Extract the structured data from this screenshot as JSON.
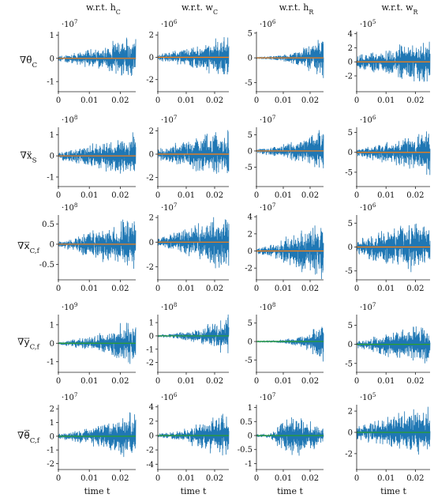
{
  "figure": {
    "x_axis_label": "time t",
    "column_headers": [
      "w.r.t. h_C",
      "w.r.t. w_C",
      "w.r.t. h_R",
      "w.r.t. w_R"
    ],
    "row_labels": [
      "∇θ̈_C",
      "∇ẍ_S",
      "∇x⃛_C,f",
      "∇y⃛_C,f",
      "∇θ⃛_C,f"
    ]
  },
  "colors": {
    "gradient_series": "#1f77b4",
    "reference_series": "#ff7f0e",
    "reference_series_alt": "#2ca02c",
    "axis": "#222222"
  },
  "chart_data": [
    {
      "type": "line",
      "row": 0,
      "col": 0,
      "exponent": "·10^7",
      "x_ticks": [
        "0",
        "0.01",
        "0.02"
      ],
      "y_ticks": [
        "-1",
        "0",
        "1"
      ],
      "xlim": [
        0,
        0.025
      ],
      "ylim": [
        -1.3,
        1.15
      ],
      "series": [
        {
          "values_envelope": {
            "t": [
              0,
              0.005,
              0.01,
              0.015,
              0.02,
              0.025
            ],
            "amp": [
              0.15,
              0.3,
              0.45,
              0.6,
              0.95,
              1.1
            ]
          }
        },
        {
          "values": {
            "t": [
              0,
              0.025
            ],
            "y": [
              0,
              0
            ]
          }
        }
      ]
    },
    {
      "type": "line",
      "row": 0,
      "col": 1,
      "exponent": "·10^6",
      "x_ticks": [
        "0",
        "0.01",
        "0.02"
      ],
      "y_ticks": [
        "-2",
        "0",
        "2"
      ],
      "xlim": [
        0,
        0.025
      ],
      "ylim": [
        -2.8,
        2.3
      ],
      "series": [
        {
          "values_envelope": {
            "t": [
              0,
              0.005,
              0.01,
              0.015,
              0.02,
              0.025
            ],
            "amp": [
              0.3,
              0.6,
              0.9,
              1.3,
              1.9,
              2.1
            ]
          }
        },
        {
          "values": {
            "t": [
              0,
              0.025
            ],
            "y": [
              0,
              0
            ]
          }
        }
      ]
    },
    {
      "type": "line",
      "row": 0,
      "col": 2,
      "exponent": "·10^6",
      "x_ticks": [
        "0",
        "0.01",
        "0.02"
      ],
      "y_ticks": [
        "-5",
        "0",
        "5"
      ],
      "xlim": [
        0,
        0.025
      ],
      "ylim": [
        -6.2,
        5.3
      ],
      "series": [
        {
          "values_envelope": {
            "t": [
              0,
              0.005,
              0.01,
              0.015,
              0.02,
              0.025
            ],
            "amp": [
              0.2,
              0.4,
              0.8,
              1.6,
              3.0,
              5.0
            ]
          }
        },
        {
          "values": {
            "t": [
              0,
              0.025
            ],
            "y": [
              0,
              0
            ]
          }
        }
      ]
    },
    {
      "type": "line",
      "row": 0,
      "col": 3,
      "exponent": "·10^5",
      "x_ticks": [
        "0",
        "0.01",
        "0.02"
      ],
      "y_ticks": [
        "-2",
        "0",
        "2",
        "4"
      ],
      "xlim": [
        0,
        0.025
      ],
      "ylim": [
        -3.8,
        4.3
      ],
      "series": [
        {
          "values_envelope": {
            "t": [
              0,
              0.005,
              0.01,
              0.015,
              0.02,
              0.025
            ],
            "amp": [
              1.0,
              1.6,
              2.2,
              2.8,
              3.3,
              3.6
            ]
          }
        },
        {
          "values": {
            "t": [
              0,
              0.025
            ],
            "y": [
              0,
              0
            ]
          }
        }
      ]
    },
    {
      "type": "line",
      "row": 1,
      "col": 0,
      "exponent": "·10^8",
      "x_ticks": [
        "0",
        "0.01",
        "0.02"
      ],
      "y_ticks": [
        "-1",
        "0",
        "1"
      ],
      "xlim": [
        0,
        0.025
      ],
      "ylim": [
        -1.3,
        1.35
      ],
      "series": [
        {
          "values_envelope": {
            "t": [
              0,
              0.005,
              0.01,
              0.015,
              0.02,
              0.025
            ],
            "amp": [
              0.2,
              0.4,
              0.6,
              0.8,
              1.0,
              1.2
            ]
          }
        },
        {
          "values": {
            "t": [
              0,
              0.025
            ],
            "y": [
              0,
              0
            ]
          }
        }
      ]
    },
    {
      "type": "line",
      "row": 1,
      "col": 1,
      "exponent": "·10^7",
      "x_ticks": [
        "0",
        "0.01",
        "0.02"
      ],
      "y_ticks": [
        "-2",
        "0",
        "2"
      ],
      "xlim": [
        0,
        0.025
      ],
      "ylim": [
        -2.5,
        2.3
      ],
      "series": [
        {
          "values_envelope": {
            "t": [
              0,
              0.005,
              0.01,
              0.015,
              0.02,
              0.025
            ],
            "amp": [
              0.5,
              1.0,
              1.4,
              1.8,
              2.0,
              2.2
            ]
          }
        },
        {
          "values": {
            "t": [
              0,
              0.025
            ],
            "y": [
              0,
              0
            ]
          }
        }
      ]
    },
    {
      "type": "line",
      "row": 1,
      "col": 2,
      "exponent": "·10^7",
      "x_ticks": [
        "0",
        "0.01",
        "0.02"
      ],
      "y_ticks": [
        "-5",
        "0",
        "5"
      ],
      "xlim": [
        0,
        0.025
      ],
      "ylim": [
        -10,
        7.3
      ],
      "series": [
        {
          "values_envelope": {
            "t": [
              0,
              0.005,
              0.01,
              0.015,
              0.02,
              0.025
            ],
            "amp": [
              0.8,
              1.5,
              2.5,
              3.5,
              5.5,
              7.5
            ]
          }
        },
        {
          "values": {
            "t": [
              0,
              0.025
            ],
            "y": [
              0,
              0
            ]
          }
        }
      ]
    },
    {
      "type": "line",
      "row": 1,
      "col": 3,
      "exponent": "·10^6",
      "x_ticks": [
        "0",
        "0.01",
        "0.02"
      ],
      "y_ticks": [
        "-5",
        "0",
        "5"
      ],
      "xlim": [
        0,
        0.025
      ],
      "ylim": [
        -7.8,
        6.3
      ],
      "series": [
        {
          "values_envelope": {
            "t": [
              0,
              0.005,
              0.01,
              0.015,
              0.02,
              0.025
            ],
            "amp": [
              1.0,
              2.0,
              3.0,
              4.0,
              5.5,
              6.5
            ]
          }
        },
        {
          "values": {
            "t": [
              0,
              0.025
            ],
            "y": [
              0,
              0
            ]
          }
        }
      ]
    },
    {
      "type": "line",
      "row": 2,
      "col": 0,
      "exponent": "·10^8",
      "x_ticks": [
        "0",
        "0.01",
        "0.02"
      ],
      "y_ticks": [
        "-0.5",
        "0",
        "0.5"
      ],
      "xlim": [
        0,
        0.025
      ],
      "ylim": [
        -0.8,
        0.72
      ],
      "series": [
        {
          "values_envelope": {
            "t": [
              0,
              0.005,
              0.01,
              0.015,
              0.02,
              0.025
            ],
            "amp": [
              0.1,
              0.2,
              0.4,
              0.5,
              0.6,
              0.7
            ]
          }
        },
        {
          "values": {
            "t": [
              0,
              0.025
            ],
            "y": [
              0,
              0
            ]
          }
        }
      ]
    },
    {
      "type": "line",
      "row": 2,
      "col": 1,
      "exponent": "·10^7",
      "x_ticks": [
        "0",
        "0.01",
        "0.02"
      ],
      "y_ticks": [
        "-2",
        "0",
        "2"
      ],
      "xlim": [
        0,
        0.025
      ],
      "ylim": [
        -2.8,
        2.2
      ],
      "series": [
        {
          "values_envelope": {
            "t": [
              0,
              0.005,
              0.01,
              0.015,
              0.02,
              0.025
            ],
            "amp": [
              0.4,
              0.8,
              1.2,
              1.7,
              2.2,
              2.5
            ]
          }
        },
        {
          "values": {
            "t": [
              0,
              0.025
            ],
            "y": [
              0,
              0
            ]
          }
        }
      ]
    },
    {
      "type": "line",
      "row": 2,
      "col": 2,
      "exponent": "·10^7",
      "x_ticks": [
        "0",
        "0.01",
        "0.02"
      ],
      "y_ticks": [
        "-2",
        "0",
        "2",
        "4"
      ],
      "xlim": [
        0,
        0.025
      ],
      "ylim": [
        -3.0,
        4.2
      ],
      "series": [
        {
          "values_envelope": {
            "t": [
              0,
              0.005,
              0.01,
              0.015,
              0.02,
              0.025
            ],
            "amp": [
              0.3,
              0.8,
              1.5,
              2.5,
              3.2,
              3.8
            ]
          }
        },
        {
          "values": {
            "t": [
              0,
              0.025
            ],
            "y": [
              0,
              0
            ]
          }
        }
      ]
    },
    {
      "type": "line",
      "row": 2,
      "col": 3,
      "exponent": "·10^6",
      "x_ticks": [
        "0",
        "0.01",
        "0.02"
      ],
      "y_ticks": [
        "-5",
        "0",
        "5"
      ],
      "xlim": [
        0,
        0.025
      ],
      "ylim": [
        -6.2,
        6.7
      ],
      "series": [
        {
          "values_envelope": {
            "t": [
              0,
              0.005,
              0.01,
              0.015,
              0.02,
              0.025
            ],
            "amp": [
              1.5,
              3.0,
              4.0,
              5.0,
              6.0,
              6.5
            ]
          }
        },
        {
          "values": {
            "t": [
              0,
              0.025
            ],
            "y": [
              0,
              0
            ]
          }
        }
      ]
    },
    {
      "type": "line",
      "row": 3,
      "col": 0,
      "exponent": "·10^9",
      "x_ticks": [
        "0",
        "0.01",
        "0.02"
      ],
      "y_ticks": [
        "-1",
        "0",
        "1"
      ],
      "xlim": [
        0,
        0.025
      ],
      "ylim": [
        -1.4,
        1.55
      ],
      "series": [
        {
          "values_envelope": {
            "t": [
              0,
              0.005,
              0.01,
              0.015,
              0.02,
              0.025
            ],
            "amp": [
              0.1,
              0.25,
              0.4,
              0.7,
              1.1,
              1.4
            ]
          }
        },
        {
          "values": {
            "t": [
              0,
              0.025
            ],
            "y": [
              0,
              0
            ]
          }
        }
      ]
    },
    {
      "type": "line",
      "row": 3,
      "col": 1,
      "exponent": "·10^8",
      "x_ticks": [
        "0",
        "0.01",
        "0.02"
      ],
      "y_ticks": [
        "-2",
        "-1",
        "0",
        "1"
      ],
      "xlim": [
        0,
        0.025
      ],
      "ylim": [
        -2.5,
        1.6
      ],
      "series": [
        {
          "values_envelope": {
            "t": [
              0,
              0.005,
              0.01,
              0.015,
              0.02,
              0.025
            ],
            "amp": [
              0.1,
              0.2,
              0.4,
              0.7,
              1.2,
              1.8
            ]
          }
        },
        {
          "values": {
            "t": [
              0,
              0.025
            ],
            "y": [
              0,
              0
            ]
          }
        }
      ]
    },
    {
      "type": "line",
      "row": 3,
      "col": 2,
      "exponent": "·10^8",
      "x_ticks": [
        "0",
        "0.01",
        "0.02"
      ],
      "y_ticks": [
        "-5",
        "0",
        "5"
      ],
      "xlim": [
        0,
        0.025
      ],
      "ylim": [
        -7.5,
        7.3
      ],
      "series": [
        {
          "values_envelope": {
            "t": [
              0,
              0.005,
              0.01,
              0.015,
              0.02,
              0.025
            ],
            "amp": [
              0.1,
              0.3,
              0.6,
              1.2,
              3.0,
              6.5
            ]
          }
        },
        {
          "values": {
            "t": [
              0,
              0.025
            ],
            "y": [
              0,
              0
            ]
          }
        }
      ]
    },
    {
      "type": "line",
      "row": 3,
      "col": 3,
      "exponent": "·10^7",
      "x_ticks": [
        "0",
        "0.01",
        "0.02"
      ],
      "y_ticks": [
        "-5",
        "0",
        "5"
      ],
      "xlim": [
        0,
        0.025
      ],
      "ylim": [
        -6.5,
        7.8
      ],
      "series": [
        {
          "values_envelope": {
            "t": [
              0,
              0.005,
              0.01,
              0.015,
              0.02,
              0.025
            ],
            "amp": [
              1.0,
              2.0,
              3.5,
              4.5,
              5.5,
              6.5
            ]
          }
        },
        {
          "values": {
            "t": [
              0,
              0.025
            ],
            "y": [
              0,
              0
            ]
          }
        }
      ]
    },
    {
      "type": "line",
      "row": 4,
      "col": 0,
      "exponent": "·10^7",
      "x_ticks": [
        "0",
        "0.01",
        "0.02"
      ],
      "y_ticks": [
        "-2",
        "-1",
        "0",
        "1",
        "2"
      ],
      "xlim": [
        0,
        0.025
      ],
      "ylim": [
        -2.2,
        2.3
      ],
      "series": [
        {
          "values_envelope": {
            "t": [
              0,
              0.005,
              0.01,
              0.015,
              0.02,
              0.025
            ],
            "amp": [
              0.2,
              0.4,
              0.7,
              1.0,
              1.6,
              2.0
            ]
          }
        },
        {
          "values": {
            "t": [
              0,
              0.025
            ],
            "y": [
              0,
              0
            ]
          }
        }
      ]
    },
    {
      "type": "line",
      "row": 4,
      "col": 1,
      "exponent": "·10^6",
      "x_ticks": [
        "0",
        "0.01",
        "0.02"
      ],
      "y_ticks": [
        "-4",
        "-2",
        "0",
        "2",
        "4"
      ],
      "xlim": [
        0,
        0.025
      ],
      "ylim": [
        -4.3,
        4.3
      ],
      "series": [
        {
          "values_envelope": {
            "t": [
              0,
              0.005,
              0.01,
              0.015,
              0.02,
              0.025
            ],
            "amp": [
              0.3,
              0.6,
              1.2,
              2.0,
              3.2,
              3.8
            ]
          }
        },
        {
          "values": {
            "t": [
              0,
              0.025
            ],
            "y": [
              0,
              0
            ]
          }
        }
      ]
    },
    {
      "type": "line",
      "row": 4,
      "col": 2,
      "exponent": "·10^7",
      "x_ticks": [
        "0",
        "0.01",
        "0.02"
      ],
      "y_ticks": [
        "-1",
        "-0.5",
        "0",
        "0.5",
        "1"
      ],
      "xlim": [
        0,
        0.025
      ],
      "ylim": [
        -1.1,
        1.1
      ],
      "series": [
        {
          "values_envelope": {
            "t": [
              0,
              0.005,
              0.01,
              0.015,
              0.02,
              0.025
            ],
            "amp": [
              0.05,
              0.1,
              0.6,
              0.9,
              0.6,
              0.3
            ]
          }
        },
        {
          "values": {
            "t": [
              0,
              0.025
            ],
            "y": [
              0,
              0
            ]
          }
        }
      ]
    },
    {
      "type": "line",
      "row": 4,
      "col": 3,
      "exponent": "·10^5",
      "x_ticks": [
        "0",
        "0.01",
        "0.02"
      ],
      "y_ticks": [
        "-2",
        "0",
        "2"
      ],
      "xlim": [
        0,
        0.025
      ],
      "ylim": [
        -3.2,
        2.6
      ],
      "series": [
        {
          "values_envelope": {
            "t": [
              0,
              0.005,
              0.01,
              0.015,
              0.02,
              0.025
            ],
            "amp": [
              0.8,
              1.2,
              1.6,
              2.0,
              2.4,
              2.8
            ]
          }
        },
        {
          "values": {
            "t": [
              0,
              0.025
            ],
            "y": [
              0,
              0
            ]
          }
        }
      ]
    }
  ]
}
